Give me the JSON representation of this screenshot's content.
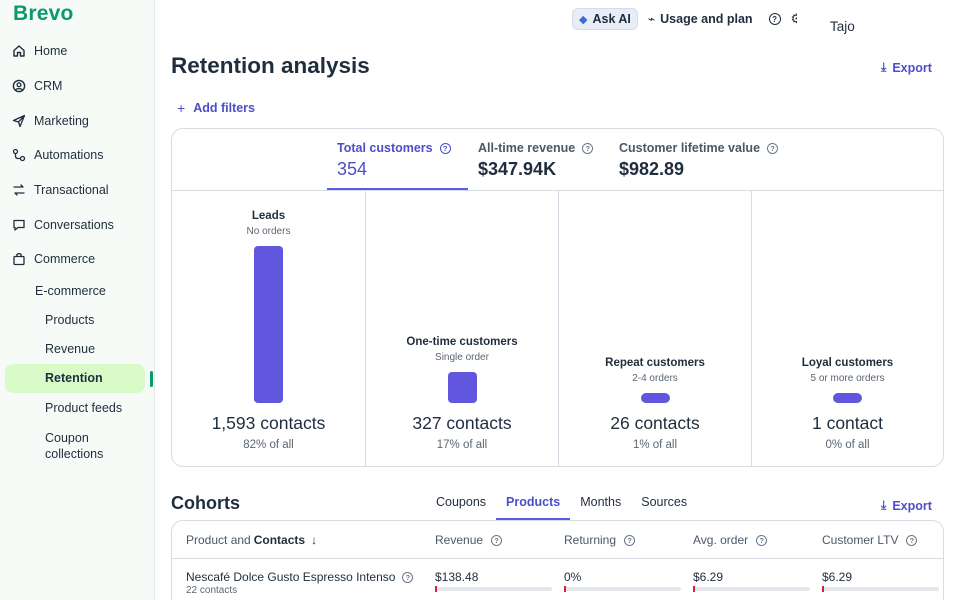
{
  "brand": {
    "logo": "Brevo",
    "accent": "#0b996e",
    "primary": "#5b5ce6"
  },
  "topbar": {
    "ask_ai": "Ask AI",
    "usage": "Usage and plan",
    "account": "Tajo"
  },
  "sidebar": {
    "items": [
      {
        "label": "Home",
        "icon": "home-icon"
      },
      {
        "label": "CRM",
        "icon": "contacts-icon"
      },
      {
        "label": "Marketing",
        "icon": "send-icon"
      },
      {
        "label": "Automations",
        "icon": "automation-icon"
      },
      {
        "label": "Transactional",
        "icon": "transactional-icon"
      },
      {
        "label": "Conversations",
        "icon": "chat-icon"
      },
      {
        "label": "Commerce",
        "icon": "bag-icon"
      }
    ],
    "submenu_title": "E-commerce",
    "submenu": [
      {
        "label": "Products",
        "active": false
      },
      {
        "label": "Revenue",
        "active": false
      },
      {
        "label": "Retention",
        "active": true
      },
      {
        "label": "Product feeds",
        "active": false
      }
    ],
    "coupon": "Coupon collections"
  },
  "page": {
    "title": "Retention analysis",
    "export": "Export",
    "add_filters": "Add filters"
  },
  "metrics": [
    {
      "label": "Total customers",
      "value": "354",
      "active": true
    },
    {
      "label": "All-time revenue",
      "value": "$347.94K",
      "active": false
    },
    {
      "label": "Customer lifetime value",
      "value": "$982.89",
      "active": false
    }
  ],
  "segments": [
    {
      "title": "Leads",
      "subtitle": "No orders",
      "count": "1,593 contacts",
      "percent": "82% of all",
      "share": 0.82
    },
    {
      "title": "One-time customers",
      "subtitle": "Single order",
      "count": "327 contacts",
      "percent": "17% of all",
      "share": 0.17
    },
    {
      "title": "Repeat customers",
      "subtitle": "2-4 orders",
      "count": "26 contacts",
      "percent": "1% of all",
      "share": 0.01
    },
    {
      "title": "Loyal customers",
      "subtitle": "5 or more orders",
      "count": "1 contact",
      "percent": "0% of all",
      "share": 0.0
    }
  ],
  "cohorts": {
    "title": "Cohorts",
    "export": "Export",
    "tabs": [
      {
        "label": "Coupons",
        "active": false
      },
      {
        "label": "Products",
        "active": true
      },
      {
        "label": "Months",
        "active": false
      },
      {
        "label": "Sources",
        "active": false
      }
    ],
    "columns": {
      "product_prefix": "Product and",
      "product_sort": "Contacts",
      "revenue": "Revenue",
      "returning": "Returning",
      "avg_order": "Avg. order",
      "ltv": "Customer LTV"
    },
    "rows": [
      {
        "product": "Nescafé Dolce Gusto Espresso Intenso",
        "contacts": "22 contacts",
        "revenue": "$138.48",
        "returning": "0%",
        "avg_order": "$6.29",
        "ltv": "$6.29"
      }
    ],
    "bar_color": "#d4213d"
  }
}
